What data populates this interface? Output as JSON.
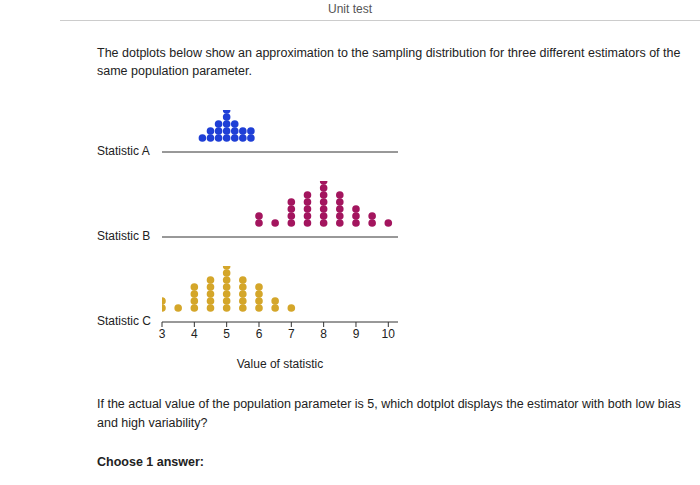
{
  "header": "Unit test",
  "intro": "The dotplots below show an approximation to the sampling distribution for three different estimators of the same population parameter.",
  "chart_data": [
    {
      "type": "dotplot",
      "ylabel": "Statistic A",
      "color": "#1f3fd6",
      "x": [
        4.25,
        4.5,
        4.75,
        5,
        5.25,
        5.5,
        5.75
      ],
      "counts": [
        1,
        2,
        3,
        5,
        3,
        2,
        2
      ],
      "xlim": [
        3,
        10.3
      ],
      "xticks": [
        3,
        4,
        5,
        6,
        7,
        8,
        9,
        10
      ],
      "tick_labels": false
    },
    {
      "type": "dotplot",
      "ylabel": "Statistic B",
      "color": "#a3155e",
      "x": [
        6,
        6.5,
        7,
        7.5,
        8,
        8.5,
        9,
        9.5,
        10
      ],
      "counts": [
        2,
        1,
        4,
        5,
        7,
        5,
        3,
        2,
        1
      ],
      "xlim": [
        3,
        10.3
      ],
      "xticks": [
        3,
        4,
        5,
        6,
        7,
        8,
        9,
        10
      ],
      "tick_labels": false
    },
    {
      "type": "dotplot",
      "ylabel": "Statistic C",
      "color": "#d4a62a",
      "x": [
        3,
        3.5,
        4,
        4.5,
        5,
        5.5,
        6,
        6.5,
        7
      ],
      "counts": [
        2,
        1,
        4,
        5,
        7,
        5,
        4,
        2,
        1
      ],
      "xlim": [
        3,
        10.3
      ],
      "xticks": [
        3,
        4,
        5,
        6,
        7,
        8,
        9,
        10
      ],
      "tick_labels": "x",
      "xlabel": "Value of statistic"
    }
  ],
  "question": "If the actual value of the population parameter is 5, which dotplot displays the estimator with both low bias and high variability?",
  "prompt": "Choose 1 answer:"
}
